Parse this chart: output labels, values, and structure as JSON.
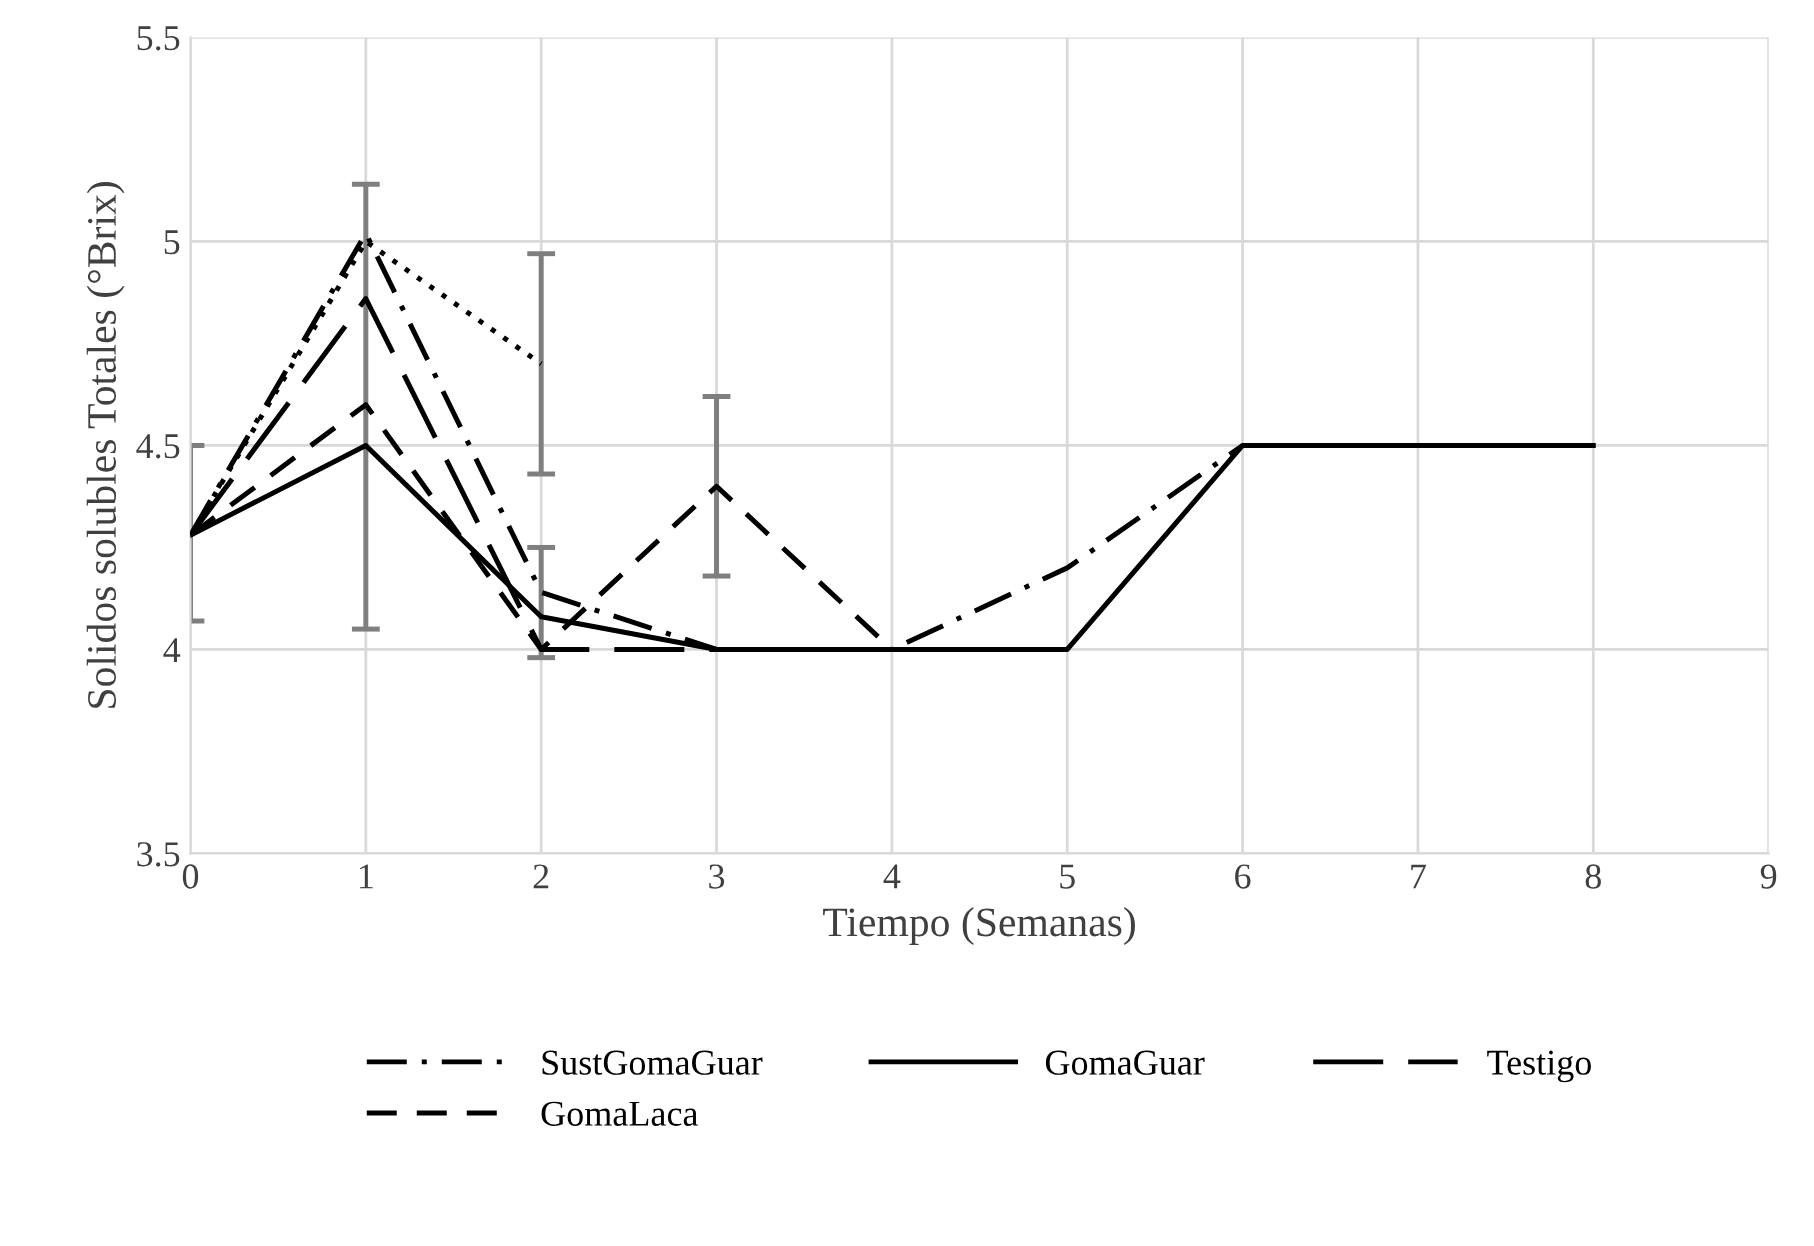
{
  "chart_data": {
    "type": "line",
    "xlabel": "Tiempo (Semanas)",
    "ylabel": "Solidos solubles Totales (°Brix)",
    "x": [
      0,
      1,
      2,
      3,
      4,
      5,
      6,
      7,
      8
    ],
    "series": [
      {
        "name": "SustGomaGuar",
        "color": "#000000",
        "line_style": "dashdot",
        "values": [
          4.28,
          5.02,
          4.14,
          4.0,
          4.0,
          4.2,
          4.5,
          null,
          null
        ],
        "errors": [
          null,
          null,
          null,
          null,
          null,
          null,
          null,
          null,
          null
        ]
      },
      {
        "name": "GomaLaca",
        "color": "#000000",
        "line_style": "dashed",
        "values": [
          4.28,
          4.6,
          4.0,
          4.4,
          4.0,
          null,
          null,
          null,
          null
        ],
        "errors": [
          null,
          null,
          null,
          [
            4.18,
            4.62
          ],
          null,
          null,
          null,
          null,
          null
        ]
      },
      {
        "name": "GomaGuar",
        "color": "#000000",
        "line_style": "solid",
        "values": [
          4.28,
          4.5,
          4.08,
          4.0,
          4.0,
          4.0,
          4.5,
          4.5,
          4.5
        ],
        "errors": [
          [
            4.07,
            4.5
          ],
          [
            4.05,
            5.14
          ],
          [
            3.98,
            4.25
          ],
          null,
          null,
          null,
          null,
          null,
          null
        ]
      },
      {
        "color": "#000000",
        "line_style": "dotted",
        "values": [
          4.28,
          5.0,
          4.7,
          null,
          null,
          null,
          null,
          null,
          null
        ],
        "errors": [
          null,
          null,
          [
            4.43,
            4.97
          ],
          null,
          null,
          null,
          null,
          null,
          null
        ]
      },
      {
        "name": "Testigo",
        "color": "#000000",
        "line_style": "longdash",
        "values": [
          4.28,
          4.86,
          4.0,
          4.0,
          null,
          null,
          null,
          null,
          null
        ]
      }
    ],
    "xlim": [
      0,
      9
    ],
    "xticks": [
      0,
      1,
      2,
      3,
      4,
      5,
      6,
      7,
      8,
      9
    ],
    "ylim": [
      3.5,
      5.5
    ],
    "yticks": [
      3.5,
      4,
      4.5,
      5,
      5.5
    ],
    "grid": true,
    "legend": "bottom",
    "marker": "none"
  }
}
